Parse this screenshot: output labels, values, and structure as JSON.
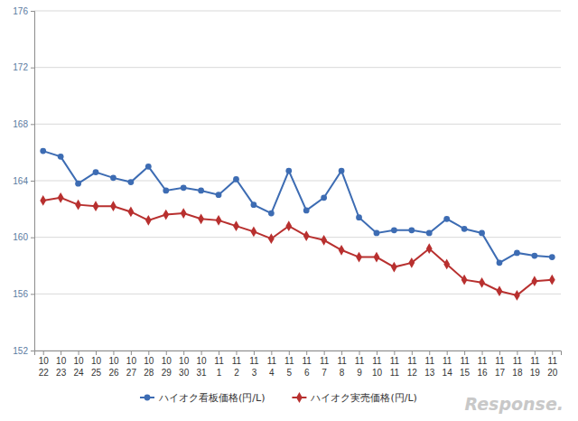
{
  "chart_data": {
    "type": "line",
    "categories": [
      "10\n22",
      "10\n23",
      "10\n24",
      "10\n25",
      "10\n26",
      "10\n27",
      "10\n28",
      "10\n29",
      "10\n30",
      "10\n31",
      "11\n1",
      "11\n2",
      "11\n3",
      "11\n4",
      "11\n5",
      "11\n6",
      "11\n7",
      "11\n8",
      "11\n9",
      "11\n10",
      "11\n11",
      "11\n12",
      "11\n13",
      "11\n14",
      "11\n15",
      "11\n16",
      "11\n17",
      "11\n18",
      "11\n19",
      "11\n20"
    ],
    "series": [
      {
        "name": "ハイオク看板価格(円/L)",
        "color": "#3d6cb3",
        "marker": "circle",
        "values": [
          166.1,
          165.7,
          163.8,
          164.6,
          164.2,
          163.9,
          165.0,
          163.3,
          163.5,
          163.3,
          163.0,
          164.1,
          162.3,
          161.7,
          164.7,
          161.9,
          162.8,
          164.7,
          161.4,
          160.3,
          160.5,
          160.5,
          160.3,
          161.3,
          160.6,
          160.3,
          158.2,
          158.9,
          158.7,
          158.6
        ]
      },
      {
        "name": "ハイオク実売価格(円/L)",
        "color": "#b8302f",
        "marker": "diamond",
        "values": [
          162.6,
          162.8,
          162.3,
          162.2,
          162.2,
          161.8,
          161.2,
          161.6,
          161.7,
          161.3,
          161.2,
          160.8,
          160.4,
          159.9,
          160.8,
          160.1,
          159.8,
          159.1,
          158.6,
          158.6,
          157.9,
          158.2,
          159.2,
          158.1,
          157.0,
          156.8,
          156.2,
          155.9,
          156.9,
          157.0
        ]
      }
    ],
    "ylim": [
      152,
      176
    ],
    "yticks": [
      152,
      156,
      160,
      164,
      168,
      172,
      176
    ],
    "grid": true,
    "legend": "bottom",
    "annotations": [
      "Response."
    ]
  }
}
